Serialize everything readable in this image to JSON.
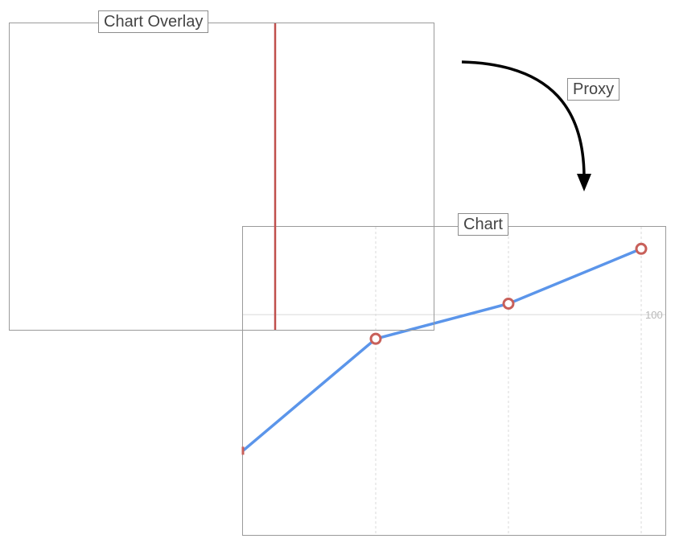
{
  "labels": {
    "overlay": "Chart Overlay",
    "chart": "Chart",
    "proxy": "Proxy"
  },
  "colors": {
    "line": "#5b95ea",
    "marker": "#c8605a",
    "cursor": "#c0504d",
    "grid": "#d9d9d9",
    "border": "#9a9a9a",
    "arrow": "#000000"
  },
  "chart_data": {
    "type": "line",
    "x": [
      0,
      1,
      2,
      3
    ],
    "series": [
      {
        "values": [
          38,
          89,
          105,
          130
        ]
      }
    ],
    "markers_on": [
      1,
      2,
      3
    ],
    "ylim": [
      0,
      140
    ],
    "yticks": [
      {
        "value": 100,
        "label": "100"
      }
    ],
    "xgrid": "dashed",
    "ygrid": "solid"
  },
  "overlay": {
    "cursor_x_value": 0.62
  }
}
